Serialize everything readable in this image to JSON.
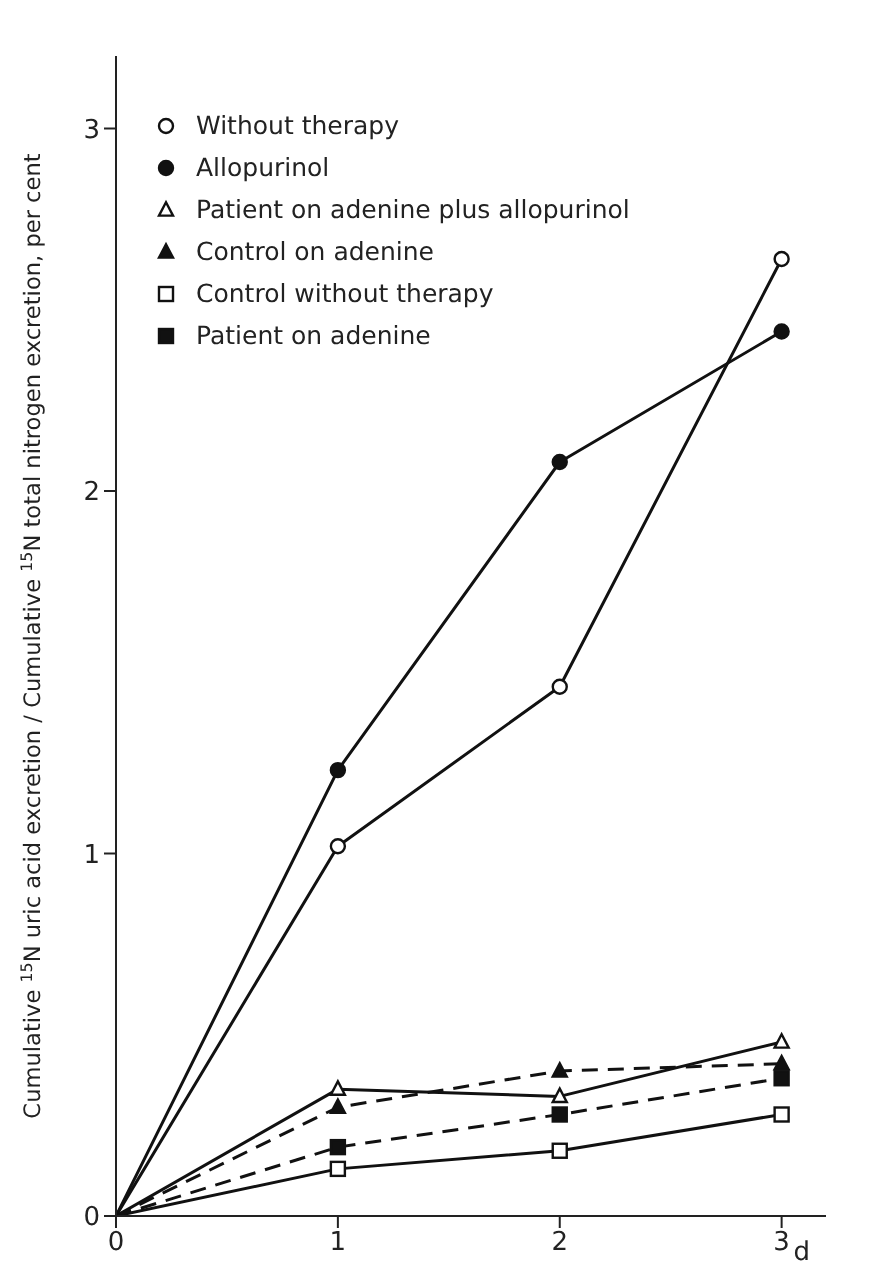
{
  "chart_data": {
    "type": "line",
    "xlabel": "d",
    "ylabel": "Cumulative $^{15}$N uric acid excretion / Cumulative $^{15}$N total nitrogen excretion, per cent",
    "x": [
      0,
      1,
      2,
      3
    ],
    "xlim": [
      0,
      3.2
    ],
    "xticks": [
      0,
      1,
      2,
      3
    ],
    "ylim": [
      0,
      3.2
    ],
    "yticks": [
      0,
      1,
      2,
      3
    ],
    "grid": false,
    "legend": "top left",
    "series": [
      {
        "name": "Without therapy",
        "color": "#111111",
        "values": [
          0,
          1.02,
          1.46,
          2.64
        ],
        "marker": "circle-open",
        "line_style": "solid"
      },
      {
        "name": "Allopurinol",
        "color": "#111111",
        "values": [
          0,
          1.23,
          2.08,
          2.44
        ],
        "marker": "circle",
        "line_style": "solid"
      },
      {
        "name": "Patient on adenine plus allopurinol",
        "color": "#111111",
        "values": [
          0,
          0.35,
          0.33,
          0.48
        ],
        "marker": "triangle-open",
        "line_style": "solid"
      },
      {
        "name": "Control on adenine",
        "color": "#111111",
        "values": [
          0,
          0.3,
          0.4,
          0.42
        ],
        "marker": "triangle",
        "line_style": "dashed"
      },
      {
        "name": "Control without therapy",
        "color": "#111111",
        "values": [
          0,
          0.13,
          0.18,
          0.28
        ],
        "marker": "square-open",
        "line_style": "solid"
      },
      {
        "name": "Patient on adenine",
        "color": "#111111",
        "values": [
          0,
          0.19,
          0.28,
          0.38
        ],
        "marker": "square",
        "line_style": "dashed"
      }
    ]
  }
}
